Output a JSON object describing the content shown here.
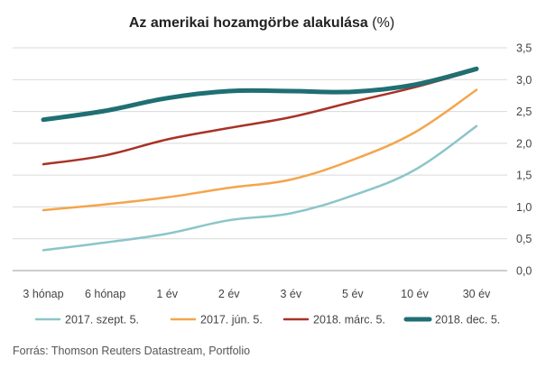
{
  "chart_data": {
    "type": "line",
    "title": "Az amerikai hozamgörbe alakulása",
    "title_unit": "(%)",
    "categories": [
      "3 hónap",
      "6 hónap",
      "1 év",
      "2 év",
      "3 év",
      "5 év",
      "10 év",
      "30 év"
    ],
    "y_ticks": [
      "0,0",
      "0,5",
      "1,0",
      "1,5",
      "2,0",
      "2,5",
      "3,0",
      "3,5"
    ],
    "ylim": [
      0,
      3.5
    ],
    "grid": true,
    "legend_position": "bottom",
    "series": [
      {
        "name": "2017. szept. 5.",
        "color": "#8cc5c9",
        "values": [
          0.32,
          0.44,
          0.58,
          0.79,
          0.9,
          1.18,
          1.58,
          2.27
        ]
      },
      {
        "name": "2017. jún. 5.",
        "color": "#f4a54d",
        "values": [
          0.95,
          1.04,
          1.15,
          1.3,
          1.43,
          1.74,
          2.17,
          2.84
        ]
      },
      {
        "name": "2018. márc. 5.",
        "color": "#a93226",
        "values": [
          1.67,
          1.81,
          2.06,
          2.24,
          2.41,
          2.65,
          2.88,
          3.15
        ]
      },
      {
        "name": "2018. dec. 5.",
        "color": "#1f6f73",
        "values": [
          2.37,
          2.51,
          2.71,
          2.82,
          2.82,
          2.81,
          2.92,
          3.17
        ]
      }
    ],
    "source": "Forrás: Thomson Reuters Datastream, Portfolio"
  }
}
